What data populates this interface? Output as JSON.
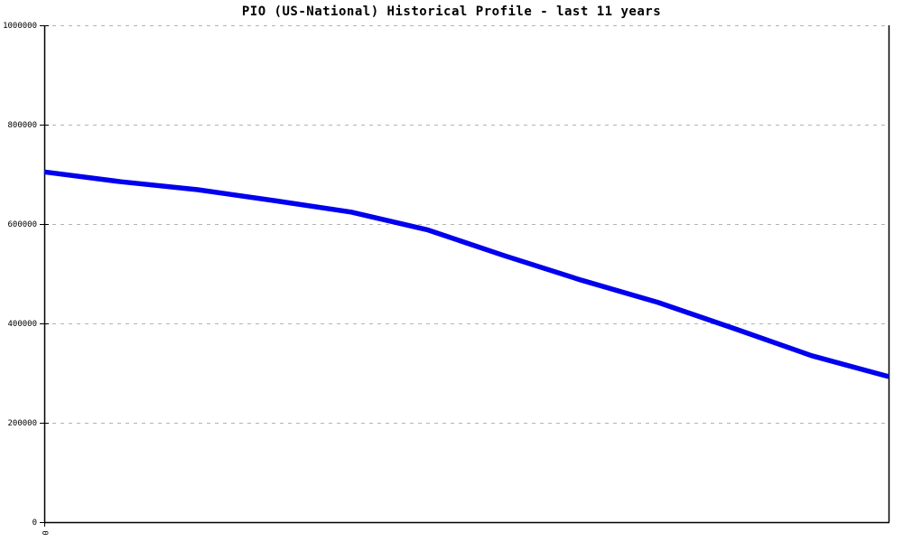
{
  "chart_data": {
    "type": "line",
    "title": "PIO (US-National) Historical Profile - last 11 years",
    "xlabel": "",
    "ylabel": "",
    "xlim": [
      0,
      11
    ],
    "ylim": [
      0,
      1000000
    ],
    "x": [
      0,
      1,
      2,
      3,
      4,
      5,
      6,
      7,
      8,
      9,
      10,
      11
    ],
    "series": [
      {
        "name": "PIO (US-National)",
        "color": "#0000ee",
        "values": [
          705000,
          685000,
          669000,
          647000,
          624000,
          588000,
          536000,
          487000,
          442000,
          389000,
          335000,
          293000
        ]
      }
    ],
    "yticks": [
      0,
      200000,
      400000,
      600000,
      800000,
      1000000
    ],
    "ytick_labels": [
      "0",
      "200000",
      "400000",
      "600000",
      "800000",
      "1000000"
    ],
    "xticks": [
      0
    ],
    "xtick_labels": [
      "0"
    ],
    "grid": "horizontal-dashed",
    "legend": "none"
  },
  "colors": {
    "line": "#0000ee",
    "grid": "#b3b3b3",
    "axis": "#000000",
    "background": "#ffffff",
    "text": "#000000"
  }
}
